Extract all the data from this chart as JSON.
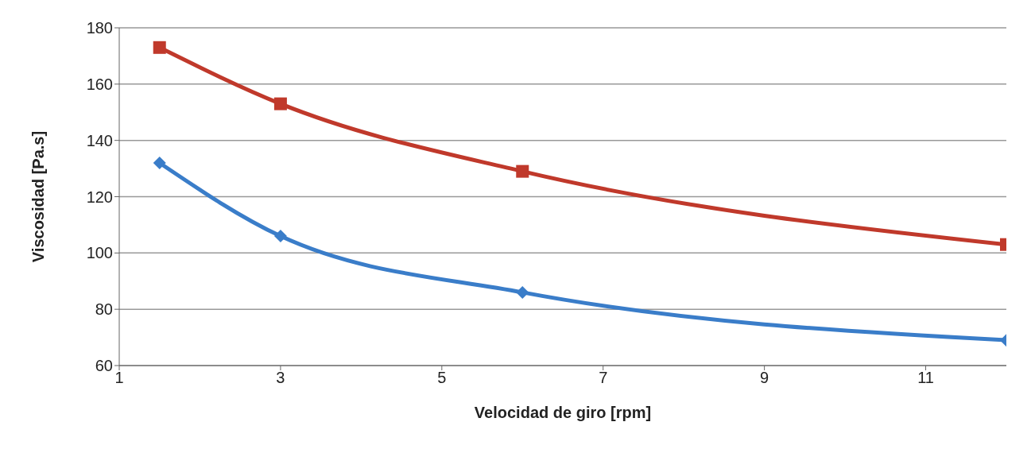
{
  "chart_data": {
    "type": "line",
    "xlabel": "Velocidad de giro [rpm]",
    "ylabel": "Viscosidad [Pa.s]",
    "x": [
      1.5,
      3,
      6,
      12
    ],
    "series": [
      {
        "color": "#c0392b",
        "values": [
          173,
          153,
          129,
          103
        ],
        "marker": "square"
      },
      {
        "color": "#3a7dc9",
        "values": [
          132,
          106,
          86,
          69
        ],
        "marker": "diamond"
      }
    ],
    "xlim": [
      1,
      12
    ],
    "xticks": [
      1,
      3,
      5,
      7,
      9,
      11
    ],
    "ylim": [
      60,
      180
    ],
    "yticks": [
      60,
      80,
      100,
      120,
      140,
      160,
      180
    ],
    "grid": "y",
    "line_style": "solid",
    "legend": false
  }
}
